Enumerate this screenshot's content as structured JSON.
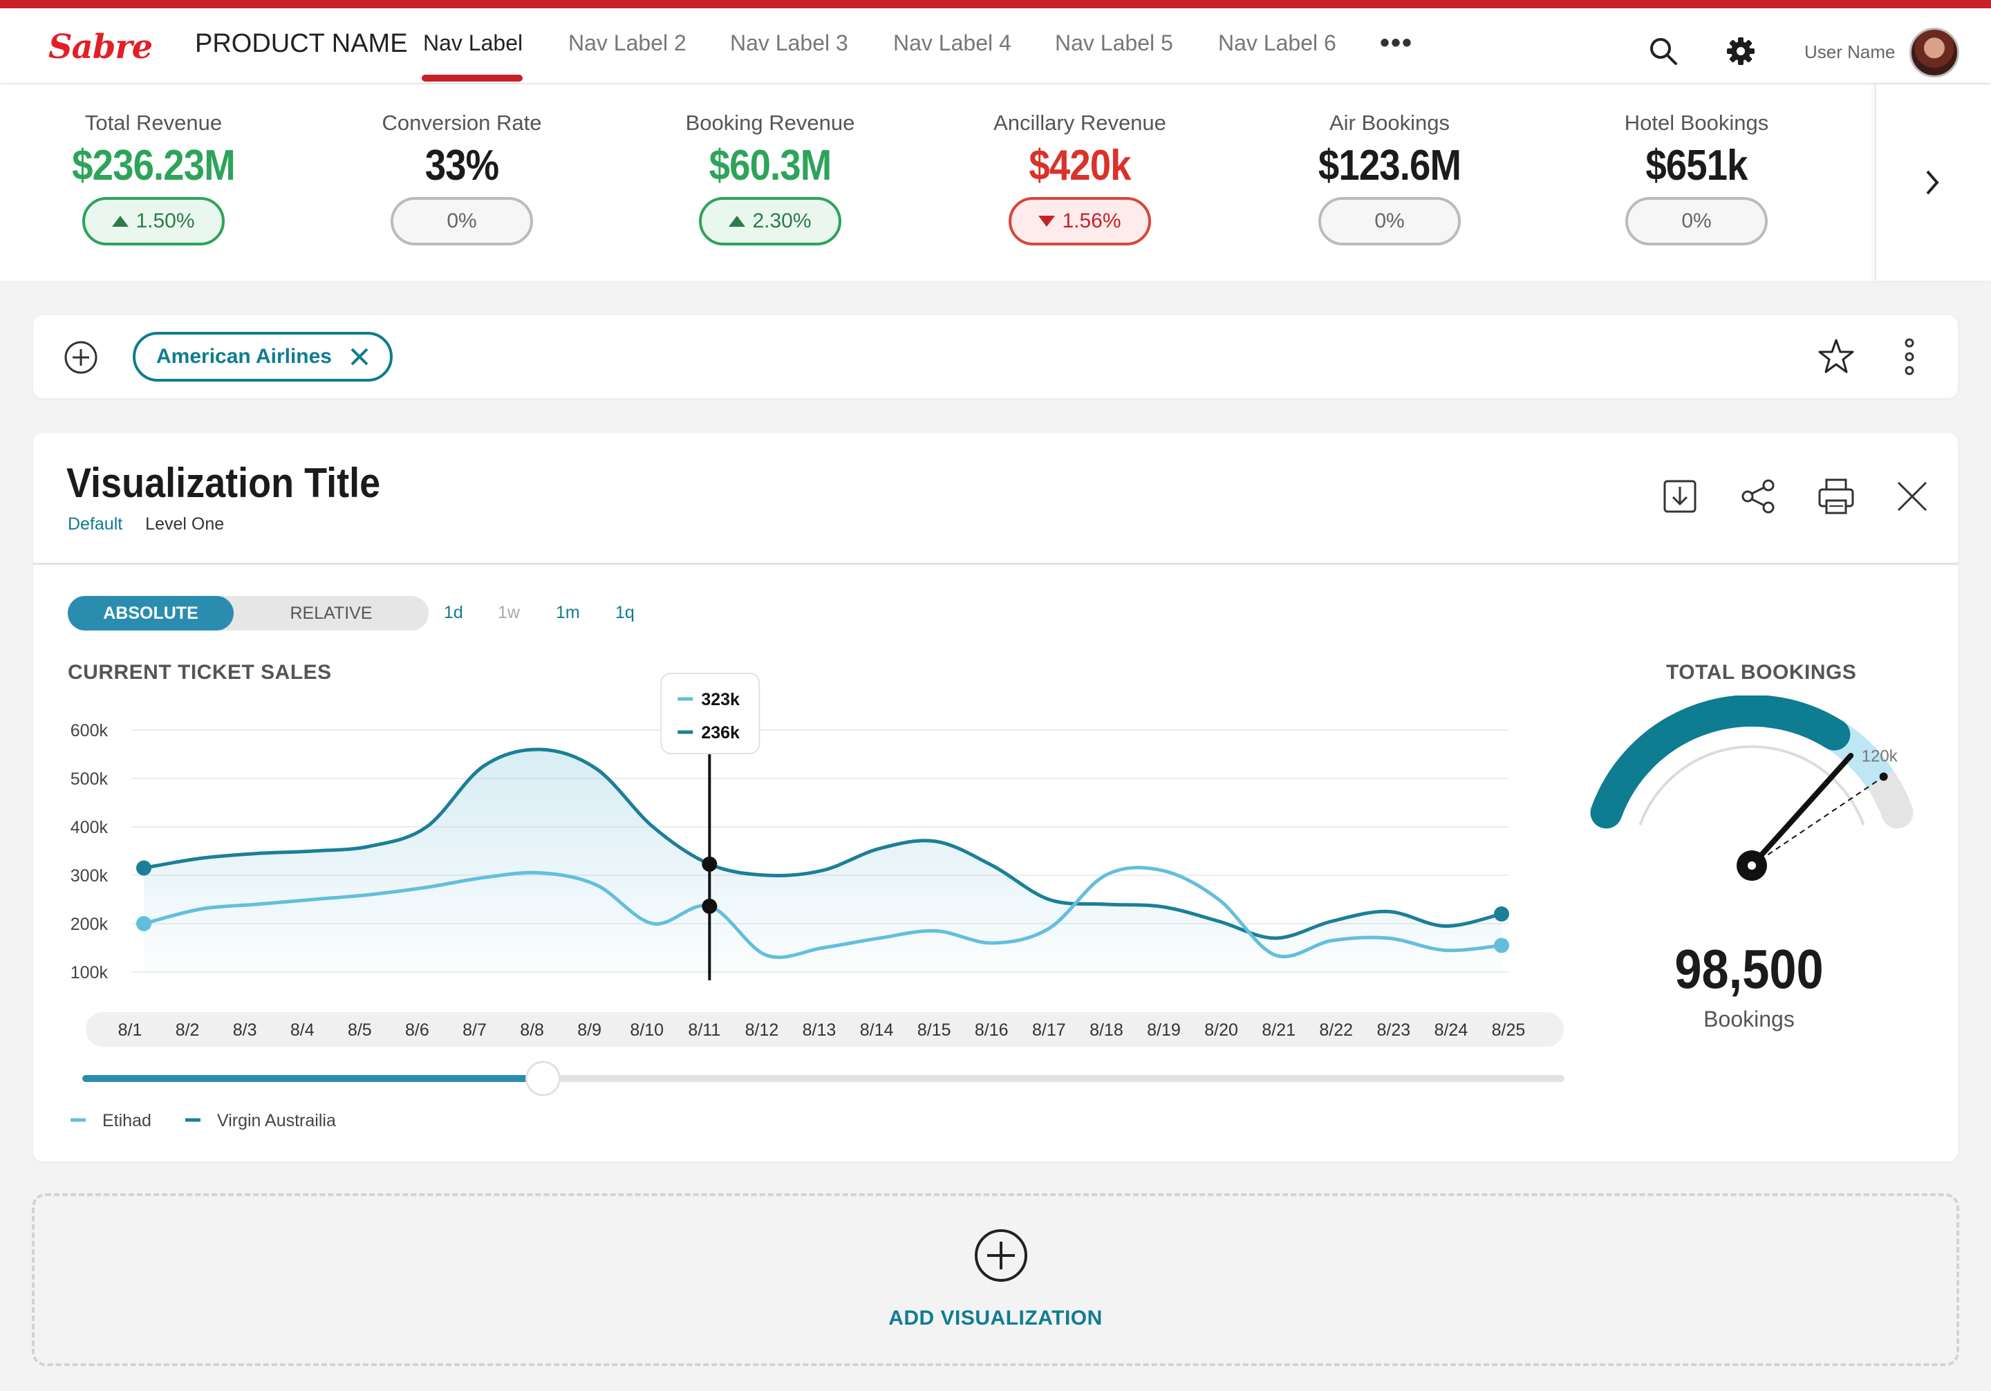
{
  "brand": {
    "logo": "Sabre",
    "product_name": "PRODUCT NAME",
    "accent_color": "#c8202a"
  },
  "nav": {
    "items": [
      {
        "label": "Nav Label",
        "active": true
      },
      {
        "label": "Nav Label 2"
      },
      {
        "label": "Nav Label 3"
      },
      {
        "label": "Nav Label 4"
      },
      {
        "label": "Nav Label 5"
      },
      {
        "label": "Nav Label 6"
      }
    ],
    "more_icon": "more-horizontal-icon"
  },
  "header": {
    "search_icon": "search-icon",
    "settings_icon": "gear-icon",
    "user_name": "User Name"
  },
  "kpis": [
    {
      "label": "Total Revenue",
      "value": "$236.23M",
      "change": "1.50%",
      "trend": "up",
      "value_color": "#2ea35a"
    },
    {
      "label": "Conversion Rate",
      "value": "33%",
      "change": "0%",
      "trend": "flat",
      "value_color": "#1b1b1b"
    },
    {
      "label": "Booking Revenue",
      "value": "$60.3M",
      "change": "2.30%",
      "trend": "up",
      "value_color": "#2ea35a"
    },
    {
      "label": "Ancillary Revenue",
      "value": "$420k",
      "change": "1.56%",
      "trend": "down",
      "value_color": "#d9322b"
    },
    {
      "label": "Air Bookings",
      "value": "$123.6M",
      "change": "0%",
      "trend": "flat",
      "value_color": "#1b1b1b"
    },
    {
      "label": "Hotel Bookings",
      "value": "$651k",
      "change": "0%",
      "trend": "flat",
      "value_color": "#1b1b1b"
    }
  ],
  "filters": {
    "chips": [
      {
        "label": "American Airlines"
      }
    ]
  },
  "visualization": {
    "title": "Visualization Title",
    "breadcrumb": [
      "Default",
      "Level One"
    ],
    "toggle": {
      "active": "ABSOLUTE",
      "inactive": "RELATIVE"
    },
    "ranges": [
      {
        "label": "1d",
        "enabled": true
      },
      {
        "label": "1w",
        "enabled": false
      },
      {
        "label": "1m",
        "enabled": true
      },
      {
        "label": "1q",
        "enabled": true
      }
    ],
    "chart_title": "CURRENT TICKET SALES",
    "tooltip": {
      "values": [
        "323k",
        "236k"
      ]
    },
    "slider_value": 0.31,
    "gauge": {
      "title": "TOTAL BOOKINGS",
      "value": "98,500",
      "value_label": "Bookings",
      "target_label": "120k",
      "fill_fraction": 0.73,
      "target_fraction": 0.9,
      "needle_fraction": 0.8
    }
  },
  "chart_data": {
    "type": "area",
    "categories": [
      "8/1",
      "8/2",
      "8/3",
      "8/4",
      "8/5",
      "8/6",
      "8/7",
      "8/8",
      "8/9",
      "8/10",
      "8/11",
      "8/12",
      "8/13",
      "8/14",
      "8/15",
      "8/16",
      "8/17",
      "8/18",
      "8/19",
      "8/20",
      "8/21",
      "8/22",
      "8/23",
      "8/24",
      "8/25"
    ],
    "y_ticks": [
      "100k",
      "200k",
      "300k",
      "400k",
      "500k",
      "600k"
    ],
    "ylim": [
      100000,
      600000
    ],
    "series": [
      {
        "name": "Virgin Austrailia",
        "color": "#1b7f98",
        "values": [
          315000,
          335000,
          345000,
          350000,
          360000,
          400000,
          525000,
          560000,
          520000,
          400000,
          323000,
          300000,
          310000,
          355000,
          370000,
          320000,
          250000,
          240000,
          235000,
          205000,
          170000,
          205000,
          225000,
          195000,
          220000
        ]
      },
      {
        "name": "Etihad",
        "color": "#62bfdc",
        "values": [
          200000,
          230000,
          240000,
          250000,
          260000,
          275000,
          295000,
          305000,
          280000,
          200000,
          236000,
          135000,
          150000,
          170000,
          185000,
          160000,
          190000,
          300000,
          310000,
          250000,
          135000,
          165000,
          170000,
          145000,
          155000
        ]
      }
    ],
    "highlight_index": 10,
    "grid": true,
    "legend_position": "bottom-left"
  },
  "add_visualization": {
    "label": "ADD VISUALIZATION"
  }
}
